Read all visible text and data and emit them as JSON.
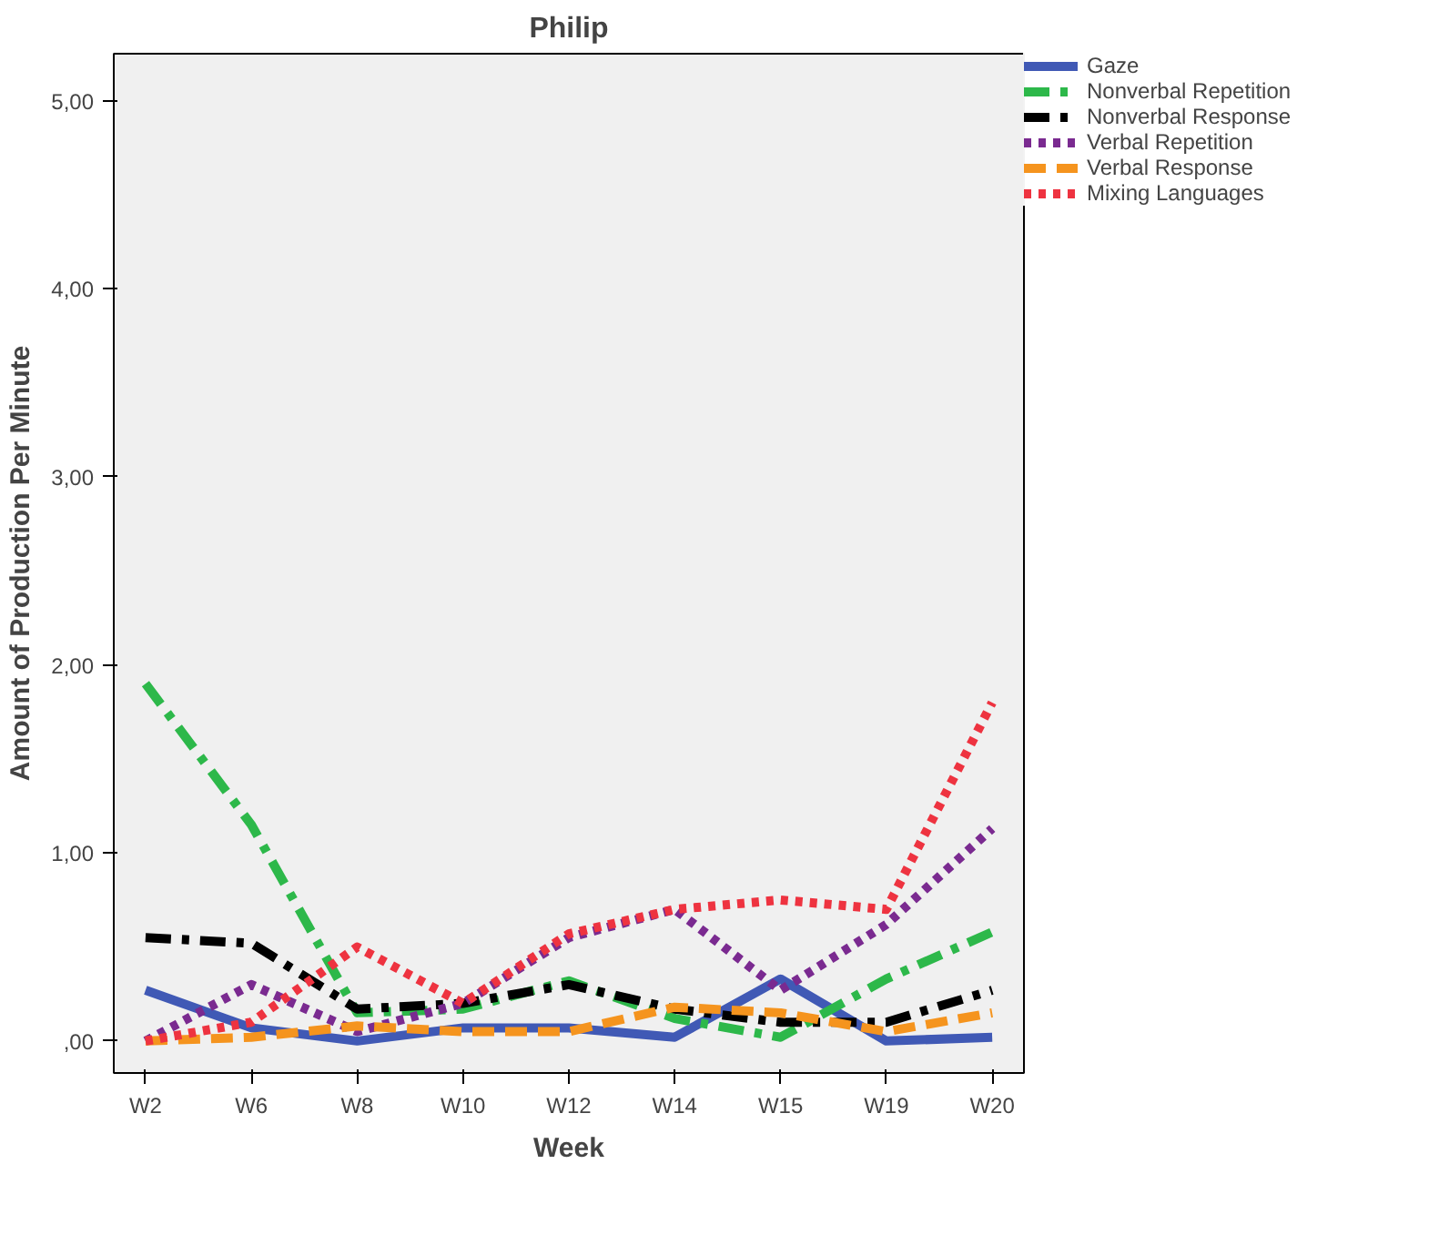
{
  "chart_data": {
    "type": "line",
    "title": "Philip",
    "xlabel": "Week",
    "ylabel": "Amount of Production Per Minute",
    "categories": [
      "W2",
      "W6",
      "W8",
      "W10",
      "W12",
      "W14",
      "W15",
      "W19",
      "W20"
    ],
    "ylim": [
      -0.17,
      5.25
    ],
    "yticks": [
      {
        "value": 0,
        "label": ",00"
      },
      {
        "value": 1,
        "label": "1,00"
      },
      {
        "value": 2,
        "label": "2,00"
      },
      {
        "value": 3,
        "label": "3,00"
      },
      {
        "value": 4,
        "label": "4,00"
      },
      {
        "value": 5,
        "label": "5,00"
      }
    ],
    "legend": "right",
    "grid": false,
    "series": [
      {
        "name": "Gaze",
        "color": "#4059b5",
        "line_style": "solid",
        "values": [
          0.27,
          0.07,
          0.0,
          0.07,
          0.07,
          0.02,
          0.33,
          0.0,
          0.02
        ]
      },
      {
        "name": "Nonverbal Repetition",
        "color": "#2db84a",
        "line_style": "dashdot",
        "values": [
          1.9,
          1.15,
          0.15,
          0.17,
          0.32,
          0.12,
          0.02,
          0.33,
          0.58
        ]
      },
      {
        "name": "Nonverbal Response",
        "color": "#000000",
        "line_style": "dashdot",
        "values": [
          0.55,
          0.52,
          0.17,
          0.2,
          0.3,
          0.17,
          0.1,
          0.1,
          0.27
        ]
      },
      {
        "name": "Verbal Repetition",
        "color": "#7a2a90",
        "line_style": "dotted",
        "values": [
          0.0,
          0.3,
          0.05,
          0.2,
          0.55,
          0.7,
          0.27,
          0.62,
          1.13
        ]
      },
      {
        "name": "Verbal Response",
        "color": "#f5941e",
        "line_style": "dashed",
        "values": [
          0.0,
          0.02,
          0.08,
          0.05,
          0.05,
          0.18,
          0.15,
          0.05,
          0.15
        ]
      },
      {
        "name": "Mixing Languages",
        "color": "#ee3340",
        "line_style": "dotted",
        "values": [
          0.0,
          0.1,
          0.5,
          0.2,
          0.57,
          0.7,
          0.75,
          0.7,
          1.8
        ]
      }
    ]
  }
}
